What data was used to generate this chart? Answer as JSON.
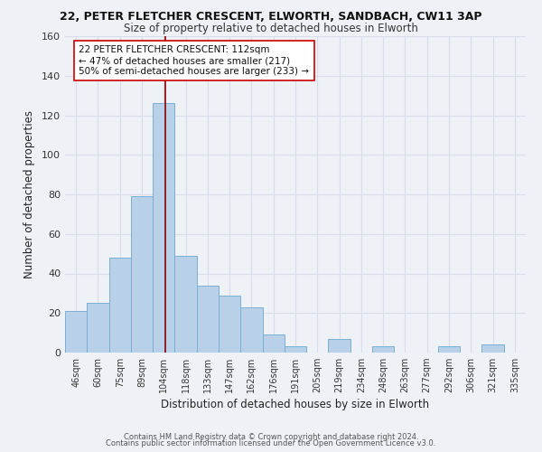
{
  "title1": "22, PETER FLETCHER CRESCENT, ELWORTH, SANDBACH, CW11 3AP",
  "title2": "Size of property relative to detached houses in Elworth",
  "xlabel": "Distribution of detached houses by size in Elworth",
  "ylabel": "Number of detached properties",
  "bar_labels": [
    "46sqm",
    "60sqm",
    "75sqm",
    "89sqm",
    "104sqm",
    "118sqm",
    "133sqm",
    "147sqm",
    "162sqm",
    "176sqm",
    "191sqm",
    "205sqm",
    "219sqm",
    "234sqm",
    "248sqm",
    "263sqm",
    "277sqm",
    "292sqm",
    "306sqm",
    "321sqm",
    "335sqm"
  ],
  "bar_values": [
    21,
    25,
    48,
    79,
    126,
    49,
    34,
    29,
    23,
    9,
    3,
    0,
    7,
    0,
    3,
    0,
    0,
    3,
    0,
    4,
    0
  ],
  "bar_color": "#b8d0e8",
  "bar_edge_color": "#7aafd4",
  "vline_color": "#8b0000",
  "ylim": [
    0,
    160
  ],
  "yticks": [
    0,
    20,
    40,
    60,
    80,
    100,
    120,
    140,
    160
  ],
  "annotation_line1": "22 PETER FLETCHER CRESCENT: 112sqm",
  "annotation_line2": "← 47% of detached houses are smaller (217)",
  "annotation_line3": "50% of semi-detached houses are larger (233) →",
  "annotation_box_color": "#ffffff",
  "annotation_box_edge": "#cc0000",
  "footer1": "Contains HM Land Registry data © Crown copyright and database right 2024.",
  "footer2": "Contains public sector information licensed under the Open Government Licence v3.0.",
  "background_color": "#eef2f7",
  "grid_color": "#d8dde8",
  "title1_fontsize": 9.0,
  "title2_fontsize": 8.5
}
